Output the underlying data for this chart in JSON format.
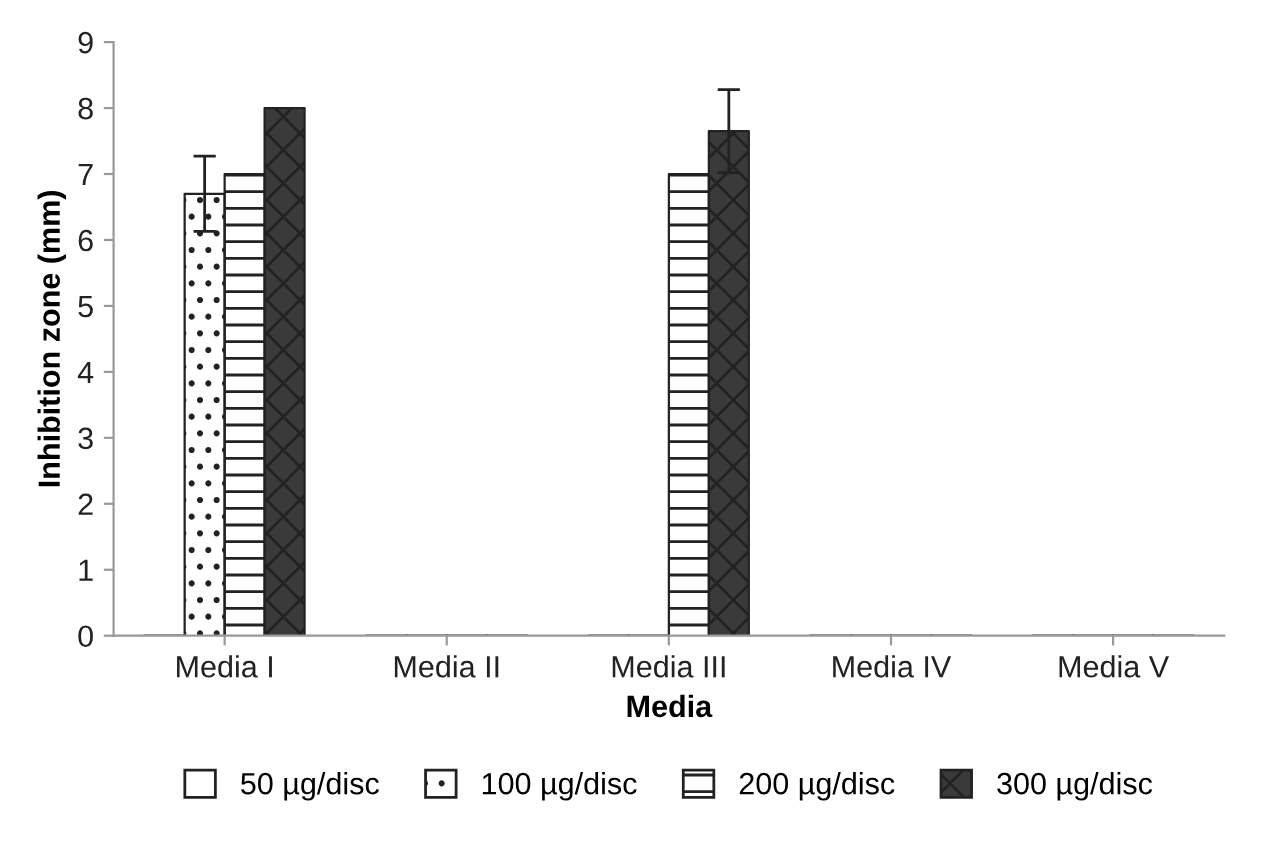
{
  "chart_data": {
    "type": "bar",
    "xlabel": "Media",
    "ylabel": "Inhibition zone (mm)",
    "categories": [
      "Media I",
      "Media II",
      "Media III",
      "Media IV",
      "Media V"
    ],
    "series": [
      {
        "name": "50 µg/disc",
        "color": "#ffffff",
        "values": [
          0,
          0,
          0,
          0,
          0
        ]
      },
      {
        "name": "100 µg/disc",
        "color": "#ffffff",
        "values": [
          6.7,
          0,
          0,
          0,
          0
        ],
        "errors": [
          0.57,
          null,
          null,
          null,
          null
        ]
      },
      {
        "name": "200 µg/disc",
        "color": "#ffffff",
        "values": [
          7.0,
          0,
          7.0,
          0,
          0
        ]
      },
      {
        "name": "300 µg/disc",
        "color": "#3a3a3a",
        "values": [
          8.0,
          0,
          7.65,
          0,
          0
        ],
        "errors": [
          null,
          null,
          0.63,
          null,
          null
        ]
      }
    ],
    "ylim": [
      0,
      9
    ],
    "yticks": [
      0,
      1,
      2,
      3,
      4,
      5,
      6,
      7,
      8,
      9
    ],
    "grid": false,
    "legend": "bottom"
  }
}
